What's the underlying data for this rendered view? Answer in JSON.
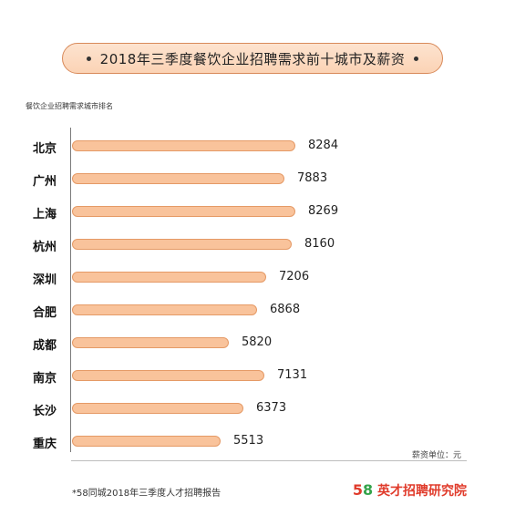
{
  "title": "2018年三季度餐饮企业招聘需求前十城市及薪资",
  "ylabel": "餐饮企业招聘需求城市排名",
  "unit_note": "薪资单位：元",
  "source": "*58同城2018年三季度人才招聘报告",
  "logo": {
    "five": "5",
    "eight": "8",
    "text": "英才招聘研究院"
  },
  "colors": {
    "bar_fill": "#f9c39b",
    "bar_border": "#e59a66",
    "title_border": "#d88a5a"
  },
  "chart_data": {
    "type": "bar",
    "orientation": "horizontal",
    "title": "2018年三季度餐饮企业招聘需求前十城市及薪资",
    "ylabel": "餐饮企业招聘需求城市排名",
    "xlabel": "",
    "unit": "薪资单位：元",
    "categories": [
      "北京",
      "广州",
      "上海",
      "杭州",
      "深圳",
      "合肥",
      "成都",
      "南京",
      "长沙",
      "重庆"
    ],
    "values": [
      8284,
      7883,
      8269,
      8160,
      7206,
      6868,
      5820,
      7131,
      6373,
      5513
    ],
    "grid": false
  }
}
